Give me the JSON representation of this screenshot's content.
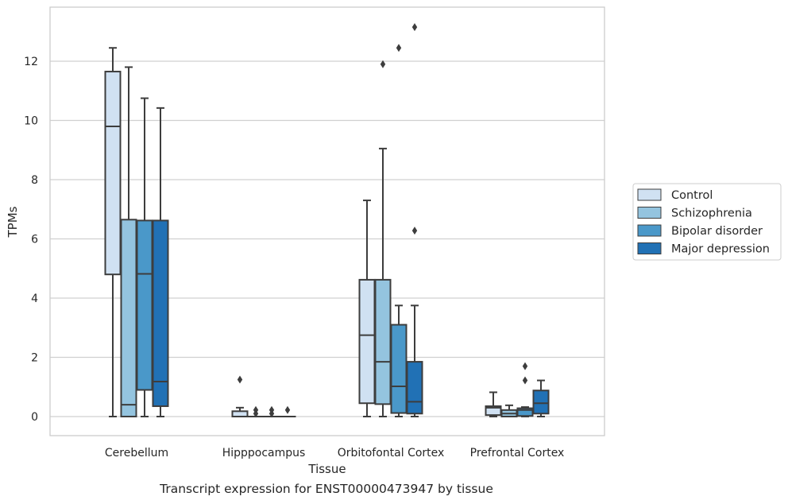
{
  "caption": "Transcript expression for ENST00000473947 by tissue",
  "chart_data": {
    "type": "box",
    "xlabel": "Tissue",
    "ylabel": "TPMs",
    "ylim": [
      -0.65,
      13.8
    ],
    "yticks": [
      0,
      2,
      4,
      6,
      8,
      10,
      12
    ],
    "grid": "horizontal",
    "legend_position": "right",
    "categories": [
      "Cerebellum",
      "Hipppocampus",
      "Orbitofontal Cortex",
      "Prefrontal Cortex"
    ],
    "series": [
      {
        "name": "Control",
        "color": "#d0e1f2",
        "boxes": [
          {
            "whislo": 0,
            "q1": 4.8,
            "med": 9.8,
            "q3": 11.65,
            "whishi": 12.45,
            "fliers": []
          },
          {
            "whislo": 0,
            "q1": 0,
            "med": 0,
            "q3": 0.18,
            "whishi": 0.3,
            "fliers": [
              1.25
            ]
          },
          {
            "whislo": 0,
            "q1": 0.45,
            "med": 2.75,
            "q3": 4.62,
            "whishi": 7.3,
            "fliers": []
          },
          {
            "whislo": 0,
            "q1": 0.05,
            "med": 0.3,
            "q3": 0.35,
            "whishi": 0.82,
            "fliers": []
          }
        ]
      },
      {
        "name": "Schizophrenia",
        "color": "#94c4df",
        "boxes": [
          {
            "whislo": 0,
            "q1": 0,
            "med": 0.4,
            "q3": 6.65,
            "whishi": 11.8,
            "fliers": []
          },
          {
            "whislo": 0,
            "q1": 0,
            "med": 0,
            "q3": 0,
            "whishi": 0,
            "fliers": [
              0.1,
              0.22
            ]
          },
          {
            "whislo": 0,
            "q1": 0.42,
            "med": 1.85,
            "q3": 4.62,
            "whishi": 9.05,
            "fliers": [
              11.9
            ]
          },
          {
            "whislo": 0,
            "q1": 0,
            "med": 0.1,
            "q3": 0.22,
            "whishi": 0.38,
            "fliers": []
          }
        ]
      },
      {
        "name": "Bipolar disorder",
        "color": "#4a98c9",
        "boxes": [
          {
            "whislo": 0,
            "q1": 0.9,
            "med": 4.82,
            "q3": 6.62,
            "whishi": 10.75,
            "fliers": []
          },
          {
            "whislo": 0,
            "q1": 0,
            "med": 0,
            "q3": 0,
            "whishi": 0,
            "fliers": [
              0.1,
              0.22
            ]
          },
          {
            "whislo": 0,
            "q1": 0.12,
            "med": 1.02,
            "q3": 3.1,
            "whishi": 3.75,
            "fliers": [
              12.45
            ]
          },
          {
            "whislo": 0,
            "q1": 0.02,
            "med": 0.22,
            "q3": 0.28,
            "whishi": 0.32,
            "fliers": [
              1.22,
              1.7
            ]
          }
        ]
      },
      {
        "name": "Major depression",
        "color": "#2171b5",
        "boxes": [
          {
            "whislo": 0,
            "q1": 0.35,
            "med": 1.18,
            "q3": 6.62,
            "whishi": 10.42,
            "fliers": []
          },
          {
            "whislo": 0,
            "q1": 0,
            "med": 0,
            "q3": 0,
            "whishi": 0,
            "fliers": [
              0.22
            ]
          },
          {
            "whislo": 0,
            "q1": 0.1,
            "med": 0.5,
            "q3": 1.85,
            "whishi": 3.75,
            "fliers": [
              13.15,
              6.28
            ]
          },
          {
            "whislo": 0,
            "q1": 0.1,
            "med": 0.45,
            "q3": 0.88,
            "whishi": 1.22,
            "fliers": []
          }
        ]
      }
    ]
  }
}
